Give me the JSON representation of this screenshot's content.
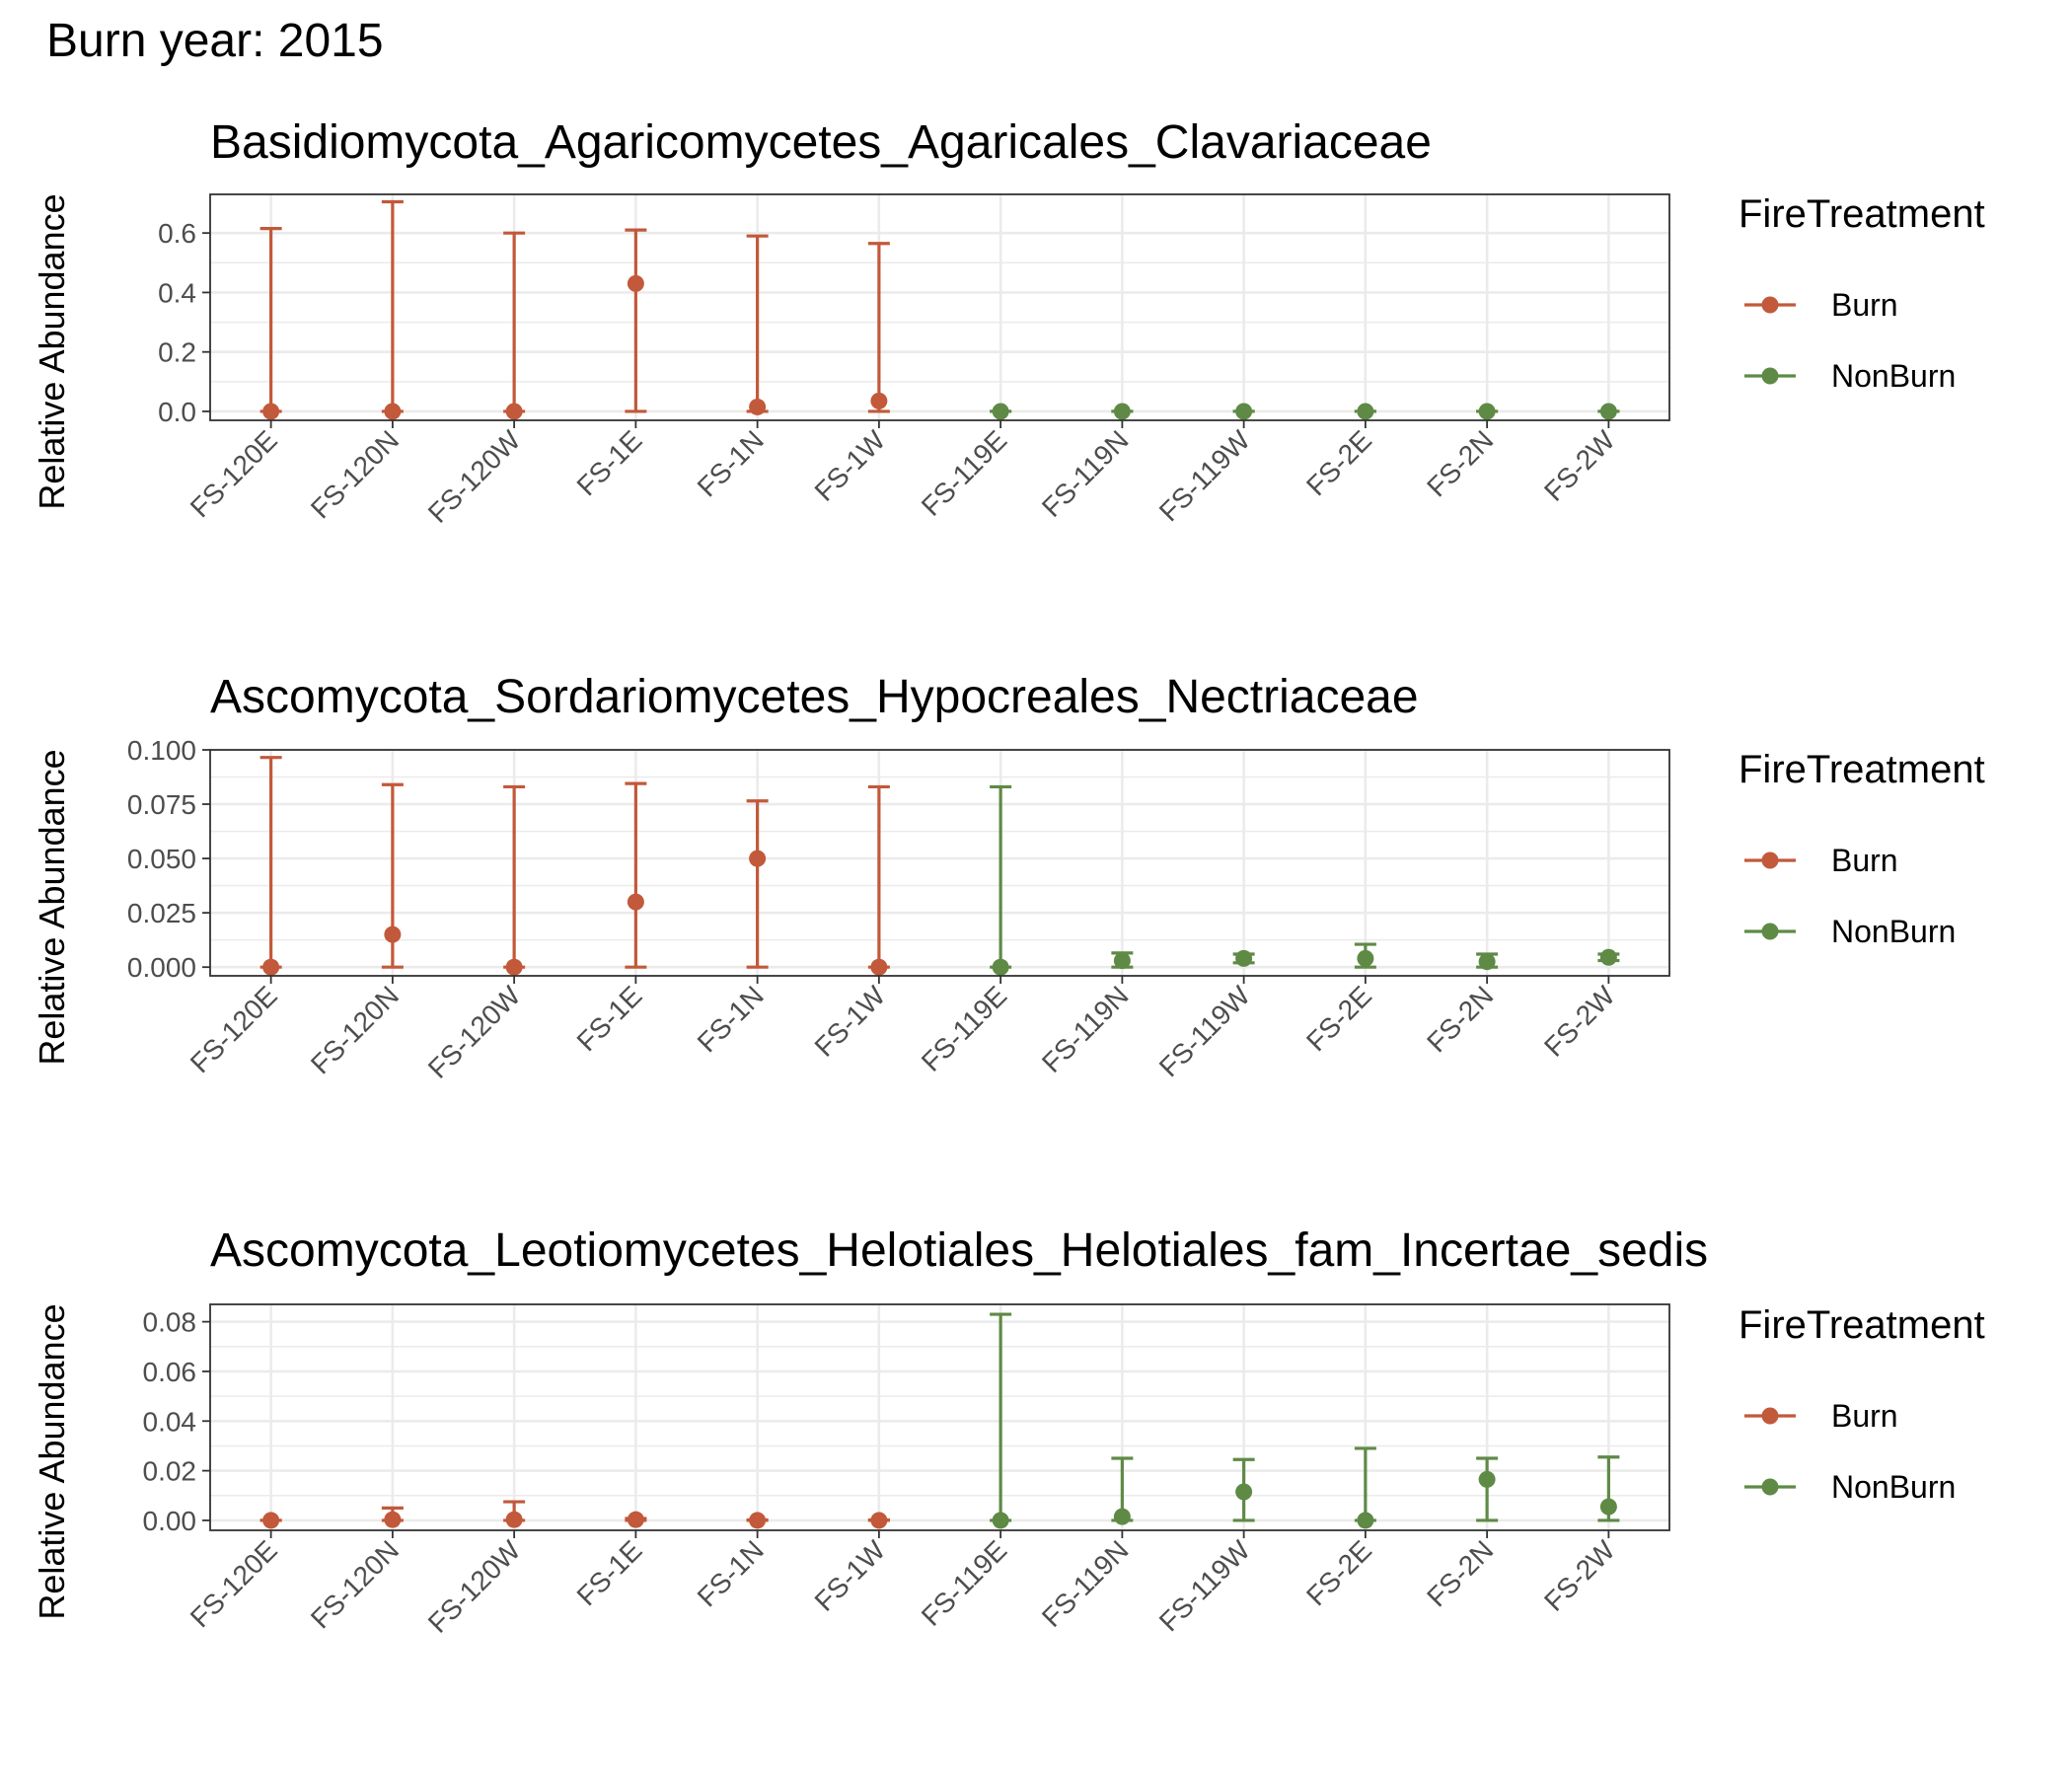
{
  "figure": {
    "title": "Burn year: 2015"
  },
  "legend": {
    "title": "FireTreatment",
    "items": [
      {
        "label": "Burn",
        "color": "#C2593A"
      },
      {
        "label": "NonBurn",
        "color": "#5F8A46"
      }
    ]
  },
  "colors": {
    "burn": "#C2593A",
    "nonburn": "#5F8A46",
    "grid": "#EBEBEB",
    "panel_border": "#333333",
    "tick_text": "#4D4D4D"
  },
  "chart_data": [
    {
      "type": "scatter",
      "title": "Basidiomycota_Agaricomycetes_Agaricales_Clavariaceae",
      "xlabel": "",
      "ylabel": "Relative Abundance",
      "ylim": [
        -0.03,
        0.73
      ],
      "yticks": [
        0.0,
        0.2,
        0.4,
        0.6
      ],
      "ytick_labels": [
        "0.0",
        "0.2",
        "0.4",
        "0.6"
      ],
      "grid": true,
      "legend_position": "right",
      "categories": [
        "FS-120E",
        "FS-120N",
        "FS-120W",
        "FS-1E",
        "FS-1N",
        "FS-1W",
        "FS-119E",
        "FS-119N",
        "FS-119W",
        "FS-2E",
        "FS-2N",
        "FS-2W"
      ],
      "groups": [
        "Burn",
        "Burn",
        "Burn",
        "Burn",
        "Burn",
        "Burn",
        "NonBurn",
        "NonBurn",
        "NonBurn",
        "NonBurn",
        "NonBurn",
        "NonBurn"
      ],
      "values": [
        0.0,
        0.0,
        0.0,
        0.43,
        0.015,
        0.035,
        0.0,
        0.0,
        0.0,
        0.0,
        0.0,
        0.0
      ],
      "lower": [
        0.0,
        0.0,
        0.0,
        0.0,
        0.0,
        0.0,
        0.0,
        0.0,
        0.0,
        0.0,
        0.0,
        0.0
      ],
      "upper": [
        0.615,
        0.705,
        0.6,
        0.61,
        0.59,
        0.565,
        0.0,
        0.0,
        0.0,
        0.0,
        0.0,
        0.0
      ]
    },
    {
      "type": "scatter",
      "title": "Ascomycota_Sordariomycetes_Hypocreales_Nectriaceae",
      "xlabel": "",
      "ylabel": "Relative Abundance",
      "ylim": [
        -0.004,
        0.1
      ],
      "yticks": [
        0.0,
        0.025,
        0.05,
        0.075,
        0.1
      ],
      "ytick_labels": [
        "0.000",
        "0.025",
        "0.050",
        "0.075",
        "0.100"
      ],
      "grid": true,
      "legend_position": "right",
      "categories": [
        "FS-120E",
        "FS-120N",
        "FS-120W",
        "FS-1E",
        "FS-1N",
        "FS-1W",
        "FS-119E",
        "FS-119N",
        "FS-119W",
        "FS-2E",
        "FS-2N",
        "FS-2W"
      ],
      "groups": [
        "Burn",
        "Burn",
        "Burn",
        "Burn",
        "Burn",
        "Burn",
        "NonBurn",
        "NonBurn",
        "NonBurn",
        "NonBurn",
        "NonBurn",
        "NonBurn"
      ],
      "values": [
        0.0,
        0.015,
        0.0,
        0.03,
        0.05,
        0.0,
        0.0,
        0.003,
        0.004,
        0.004,
        0.0025,
        0.0045
      ],
      "lower": [
        0.0,
        0.0,
        0.0,
        0.0,
        0.0,
        0.0,
        0.0,
        0.0,
        0.002,
        0.0,
        0.0,
        0.003
      ],
      "upper": [
        0.0965,
        0.084,
        0.083,
        0.0845,
        0.0765,
        0.083,
        0.083,
        0.0065,
        0.006,
        0.0105,
        0.006,
        0.006
      ]
    },
    {
      "type": "scatter",
      "title": "Ascomycota_Leotiomycetes_Helotiales_Helotiales_fam_Incertae_sedis",
      "xlabel": "",
      "ylabel": "Relative Abundance",
      "ylim": [
        -0.004,
        0.087
      ],
      "yticks": [
        0.0,
        0.02,
        0.04,
        0.06,
        0.08
      ],
      "ytick_labels": [
        "0.00",
        "0.02",
        "0.04",
        "0.06",
        "0.08"
      ],
      "grid": true,
      "legend_position": "right",
      "categories": [
        "FS-120E",
        "FS-120N",
        "FS-120W",
        "FS-1E",
        "FS-1N",
        "FS-1W",
        "FS-119E",
        "FS-119N",
        "FS-119W",
        "FS-2E",
        "FS-2N",
        "FS-2W"
      ],
      "groups": [
        "Burn",
        "Burn",
        "Burn",
        "Burn",
        "Burn",
        "Burn",
        "NonBurn",
        "NonBurn",
        "NonBurn",
        "NonBurn",
        "NonBurn",
        "NonBurn"
      ],
      "values": [
        0.0,
        0.0003,
        0.0003,
        0.0003,
        0.0,
        0.0,
        0.0,
        0.0015,
        0.0115,
        0.0,
        0.0165,
        0.0055
      ],
      "lower": [
        0.0,
        0.0,
        0.0,
        0.0,
        0.0,
        0.0,
        0.0,
        0.0,
        0.0,
        0.0,
        0.0,
        0.0
      ],
      "upper": [
        0.0,
        0.005,
        0.0075,
        0.0008,
        0.0002,
        0.0002,
        0.083,
        0.025,
        0.0245,
        0.029,
        0.025,
        0.0255
      ]
    }
  ]
}
